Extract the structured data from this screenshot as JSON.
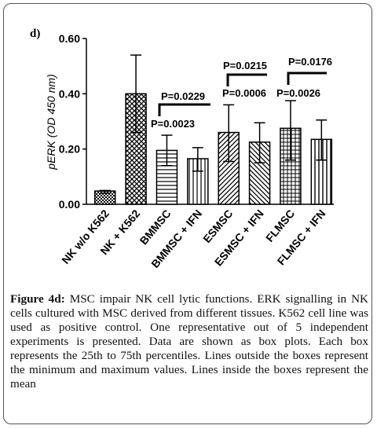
{
  "chart_data": {
    "type": "bar",
    "panel_label": "d)",
    "y_label": "pERK (OD 450 nm)",
    "categories": [
      "NK w/o K562",
      "NK + K562",
      "BMMSC",
      "BMMSC + IFN",
      "ESMSC",
      "ESMSC + IFN",
      "FLMSC",
      "FLMSC + IFN"
    ],
    "values": [
      0.048,
      0.4,
      0.195,
      0.165,
      0.26,
      0.225,
      0.275,
      0.235
    ],
    "min": [
      0.04,
      0.26,
      0.14,
      0.12,
      0.155,
      0.15,
      0.16,
      0.16
    ],
    "max": [
      0.05,
      0.54,
      0.25,
      0.205,
      0.36,
      0.295,
      0.375,
      0.305
    ],
    "ylim": [
      0,
      0.6
    ],
    "yticks": [
      {
        "value": 0,
        "label": "0.00"
      },
      {
        "value": 0.2,
        "label": "0.20"
      },
      {
        "value": 0.4,
        "label": "0.40"
      },
      {
        "value": 0.6,
        "label": "0.60"
      }
    ],
    "annotations": [
      "P=0.0229",
      "P=0.0023",
      "P=0.0215",
      "P=0.0006",
      "P=0.0176",
      "P=0.0026"
    ]
  },
  "caption": {
    "label": "Figure 4d:",
    "text": "MSC impair NK cell lytic functions. ERK signalling in NK cells cultured with MSC derived from different tissues. K562 cell line was used as positive control. One representative out of 5 independent experiments is presented. Data are shown as box plots. Each box represents the 25th to 75th percentiles. Lines outside the boxes represent the minimum and maximum values. Lines inside the boxes represent the mean"
  }
}
